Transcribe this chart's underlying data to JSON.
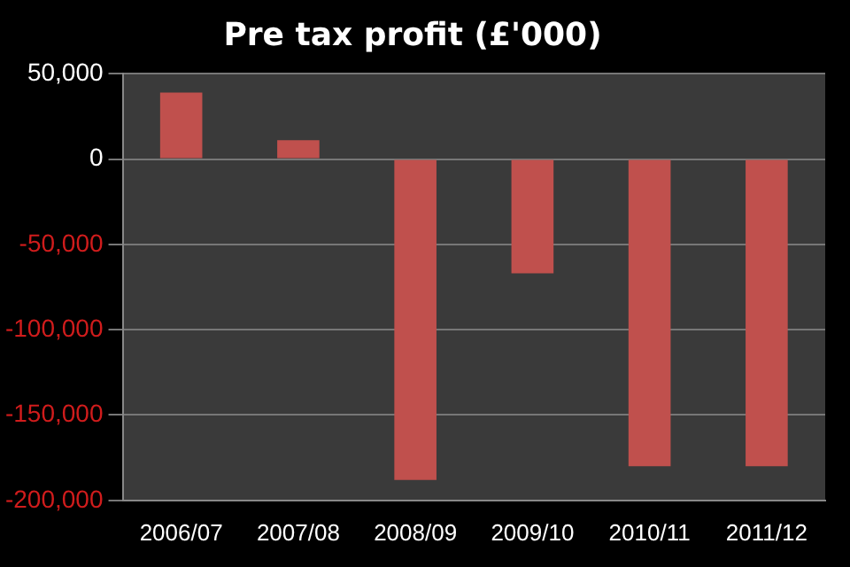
{
  "chart_data": {
    "type": "bar",
    "title": "Pre tax profit (£'000)",
    "categories": [
      "2006/07",
      "2007/08",
      "2008/09",
      "2009/10",
      "2010/11",
      "2011/12"
    ],
    "values": [
      39000,
      11000,
      -188000,
      -67000,
      -180000,
      -180000
    ],
    "color": "#c0504d",
    "ylim": [
      -200000,
      50000
    ],
    "yticks": [
      {
        "value": -200000,
        "label": "-200,000"
      },
      {
        "value": -150000,
        "label": "-150,000"
      },
      {
        "value": -100000,
        "label": "-100,000"
      },
      {
        "value": -50000,
        "label": "-50,000"
      },
      0,
      {
        "value": 50000,
        "label": "50,000"
      }
    ],
    "grid": "y"
  }
}
